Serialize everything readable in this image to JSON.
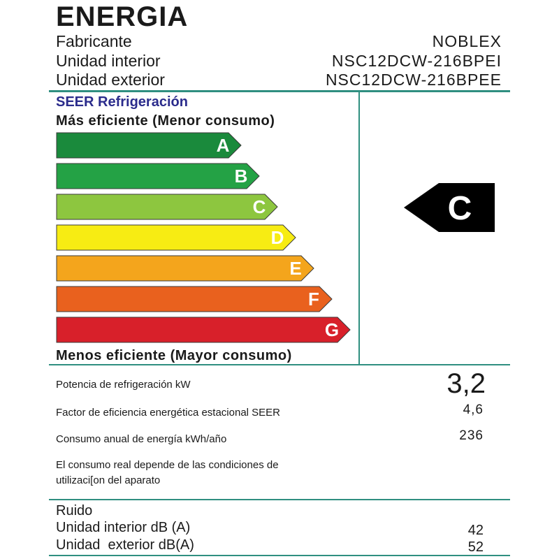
{
  "title": "ENERGIA",
  "header": {
    "rows": [
      {
        "label": "Fabricante",
        "value": "NOBLEX"
      },
      {
        "label": "Unidad interior",
        "value": "NSC12DCW-216BPEI"
      },
      {
        "label": "Unidad exterior",
        "value": "NSC12DCW-216BPEE"
      }
    ]
  },
  "scale": {
    "title": "SEER Refrigeración",
    "top_caption": "Más eficiente (Menor consumo)",
    "bottom_caption": "Menos eficiente (Mayor consumo)",
    "classes": [
      {
        "letter": "A",
        "color": "#1a8a3c"
      },
      {
        "letter": "B",
        "color": "#24a245"
      },
      {
        "letter": "C",
        "color": "#8dc63f"
      },
      {
        "letter": "D",
        "color": "#f7ec13"
      },
      {
        "letter": "E",
        "color": "#f4a51c"
      },
      {
        "letter": "F",
        "color": "#e9611e"
      },
      {
        "letter": "G",
        "color": "#d8202a"
      }
    ],
    "rating": "C",
    "rating_color": "#000000"
  },
  "specs": [
    {
      "label": "Potencia de refrigeración kW",
      "value": "3,2"
    },
    {
      "label": "Factor de eficiencia energética estacional SEER",
      "value": "4,6"
    },
    {
      "label": "Consumo anual de energía kWh/año",
      "value": "236"
    }
  ],
  "note": {
    "line1": "El consumo real depende de las condiciones de",
    "line2": "utilizaci[on del aparato"
  },
  "noise": {
    "title": "Ruido",
    "rows": [
      {
        "label": "Unidad interior dB (A)",
        "value": "42"
      },
      {
        "label": "Unidad  exterior dB(A)",
        "value": "52"
      }
    ]
  },
  "accent_color": "#2f8f80"
}
